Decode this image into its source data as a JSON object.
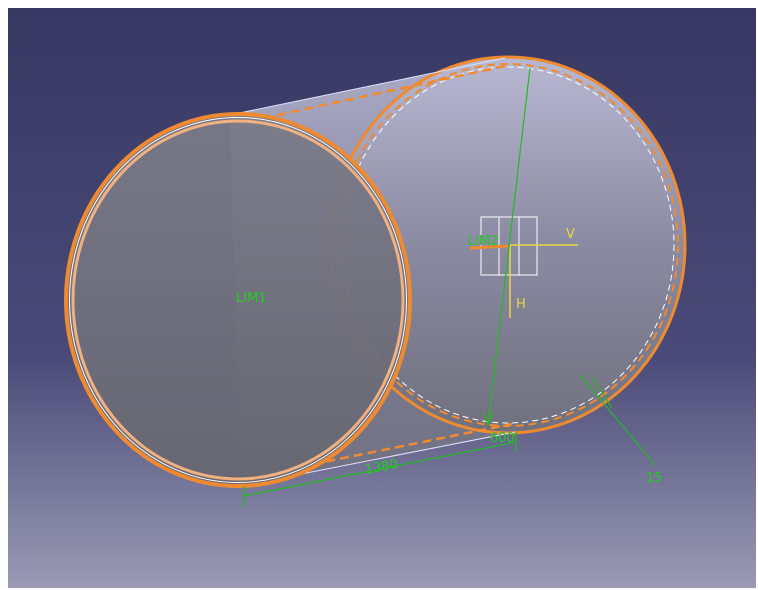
{
  "labels": {
    "lim1": "LIM1",
    "lim2": "LIM2",
    "axis_v": "V",
    "axis_h": "H",
    "length_dim": "1380",
    "diameter_dim": "600",
    "thickness_dim": "15"
  }
}
